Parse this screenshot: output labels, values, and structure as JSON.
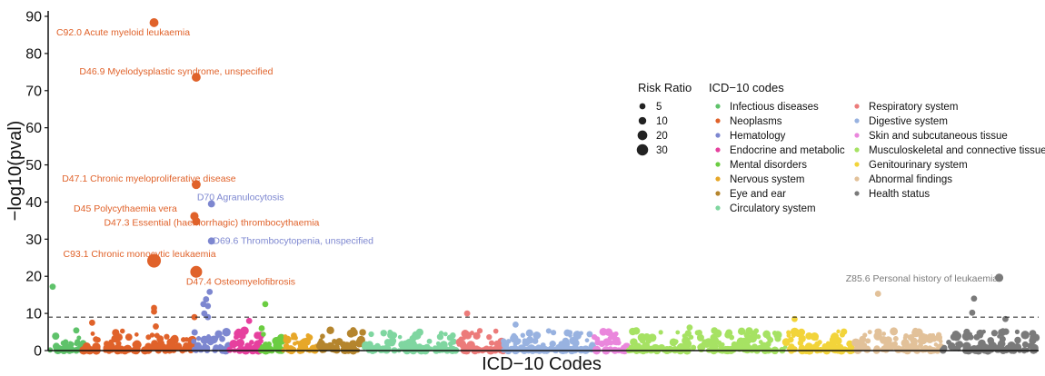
{
  "chart_data": {
    "type": "scatter",
    "title": "",
    "xlabel": "ICD−10 Codes",
    "ylabel": "−log10(pval)",
    "ylim": [
      0,
      90
    ],
    "yticks": [
      0,
      10,
      20,
      30,
      40,
      50,
      60,
      70,
      80,
      90
    ],
    "threshold": 9,
    "categories": [
      {
        "name": "Infectious diseases",
        "color": "#5ec26a",
        "span": [
          0,
          37
        ]
      },
      {
        "name": "Neoplasms",
        "color": "#e0622a",
        "span": [
          37,
          160
        ]
      },
      {
        "name": "Hematology",
        "color": "#7d87d0",
        "span": [
          160,
          200
        ]
      },
      {
        "name": "Endocrine and metabolic",
        "color": "#e6409e",
        "span": [
          200,
          235
        ]
      },
      {
        "name": "Mental disorders",
        "color": "#6bcd42",
        "span": [
          235,
          260
        ]
      },
      {
        "name": "Nervous system",
        "color": "#e7a728",
        "span": [
          260,
          300
        ]
      },
      {
        "name": "Eye and ear",
        "color": "#b5852d",
        "span": [
          300,
          350
        ]
      },
      {
        "name": "Circulatory system",
        "color": "#7fd6a0",
        "span": [
          350,
          455
        ]
      },
      {
        "name": "Respiratory system",
        "color": "#ec7b7a",
        "span": [
          455,
          505
        ]
      },
      {
        "name": "Digestive system",
        "color": "#98b2e0",
        "span": [
          505,
          605
        ]
      },
      {
        "name": "Skin and subcutaneous tissue",
        "color": "#ea87dc",
        "span": [
          605,
          645
        ]
      },
      {
        "name": "Musculoskeletal and connective tissue",
        "color": "#a6e263",
        "span": [
          645,
          820
        ]
      },
      {
        "name": "Genitourinary system",
        "color": "#f2d43a",
        "span": [
          820,
          895
        ]
      },
      {
        "name": "Abnormal findings",
        "color": "#e2c199",
        "span": [
          895,
          995
        ]
      },
      {
        "name": "Health status",
        "color": "#7a7a7a",
        "span": [
          995,
          1100
        ]
      }
    ],
    "x_range": [
      0,
      1100
    ],
    "highlighted": [
      {
        "code": "C92.0",
        "label": "C92.0 Acute myeloid leukaemia",
        "category": "Neoplasms",
        "x": 116,
        "y": 88.3,
        "rr": 10
      },
      {
        "code": "D46.9",
        "label": "D46.9 Myelodysplastic syndrome, unspecified",
        "category": "Neoplasms",
        "x": 163,
        "y": 73.6,
        "rr": 10
      },
      {
        "code": "D47.1",
        "label": "D47.1 Chronic myeloproliferative disease",
        "category": "Neoplasms",
        "x": 163,
        "y": 44.7,
        "rr": 10
      },
      {
        "code": "D70",
        "label": "D70 Agranulocytosis",
        "category": "Hematology",
        "x": 180,
        "y": 39.5,
        "rr": 5
      },
      {
        "code": "D45",
        "label": "D45 Polycythaemia vera",
        "category": "Neoplasms",
        "x": 161,
        "y": 36.2,
        "rr": 8
      },
      {
        "code": "D47.3",
        "label": "D47.3 Essential (haemorrhagic) thrombocythaemia",
        "category": "Neoplasms",
        "x": 163,
        "y": 34.8,
        "rr": 8
      },
      {
        "code": "D69.6",
        "label": "D69.6 Thrombocytopenia, unspecified",
        "category": "Hematology",
        "x": 180,
        "y": 29.5,
        "rr": 5
      },
      {
        "code": "C93.1",
        "label": "C93.1 Chronic monocytic leukaemia",
        "category": "Neoplasms",
        "x": 116,
        "y": 24.2,
        "rr": 32
      },
      {
        "code": "D47.4",
        "label": "D47.4 Osteomyelofibrosis",
        "category": "Neoplasms",
        "x": 163,
        "y": 21.2,
        "rr": 22
      },
      {
        "code": "Z85.6",
        "label": "Z85.6 Personal history of leukaemia",
        "category": "Health status",
        "x": 1058,
        "y": 19.6,
        "rr": 8
      }
    ],
    "other_points": [
      {
        "x": 3,
        "y": 17.2,
        "cat": 0
      },
      {
        "x": 47,
        "y": 7.5,
        "cat": 1
      },
      {
        "x": 116,
        "y": 11.5,
        "cat": 1
      },
      {
        "x": 116,
        "y": 10.5,
        "cat": 1
      },
      {
        "x": 118,
        "y": 6.5,
        "cat": 1
      },
      {
        "x": 161,
        "y": 9,
        "cat": 1
      },
      {
        "x": 178,
        "y": 15.8,
        "cat": 2
      },
      {
        "x": 174,
        "y": 13.8,
        "cat": 2
      },
      {
        "x": 171,
        "y": 12.5,
        "cat": 2
      },
      {
        "x": 176,
        "y": 12,
        "cat": 2
      },
      {
        "x": 172,
        "y": 10,
        "cat": 2
      },
      {
        "x": 176,
        "y": 9,
        "cat": 2
      },
      {
        "x": 222,
        "y": 8,
        "cat": 3
      },
      {
        "x": 240,
        "y": 12.5,
        "cat": 4
      },
      {
        "x": 236,
        "y": 6,
        "cat": 4
      },
      {
        "x": 338,
        "y": 5.5,
        "cat": 6
      },
      {
        "x": 465,
        "y": 10,
        "cat": 8
      },
      {
        "x": 519,
        "y": 7,
        "cat": 9
      },
      {
        "x": 713,
        "y": 6.2,
        "cat": 11
      },
      {
        "x": 830,
        "y": 8.5,
        "cat": 12
      },
      {
        "x": 923,
        "y": 15.3,
        "cat": 13
      },
      {
        "x": 1030,
        "y": 14,
        "cat": 14
      },
      {
        "x": 1028,
        "y": 10.2,
        "cat": 14
      },
      {
        "x": 1065,
        "y": 8.5,
        "cat": 14
      }
    ],
    "legend": {
      "risk_ratio_title": "Risk Ratio",
      "risk_ratio_sizes": [
        5,
        10,
        20,
        30
      ],
      "category_title": "ICD−10 codes",
      "placement": "top-right"
    }
  }
}
